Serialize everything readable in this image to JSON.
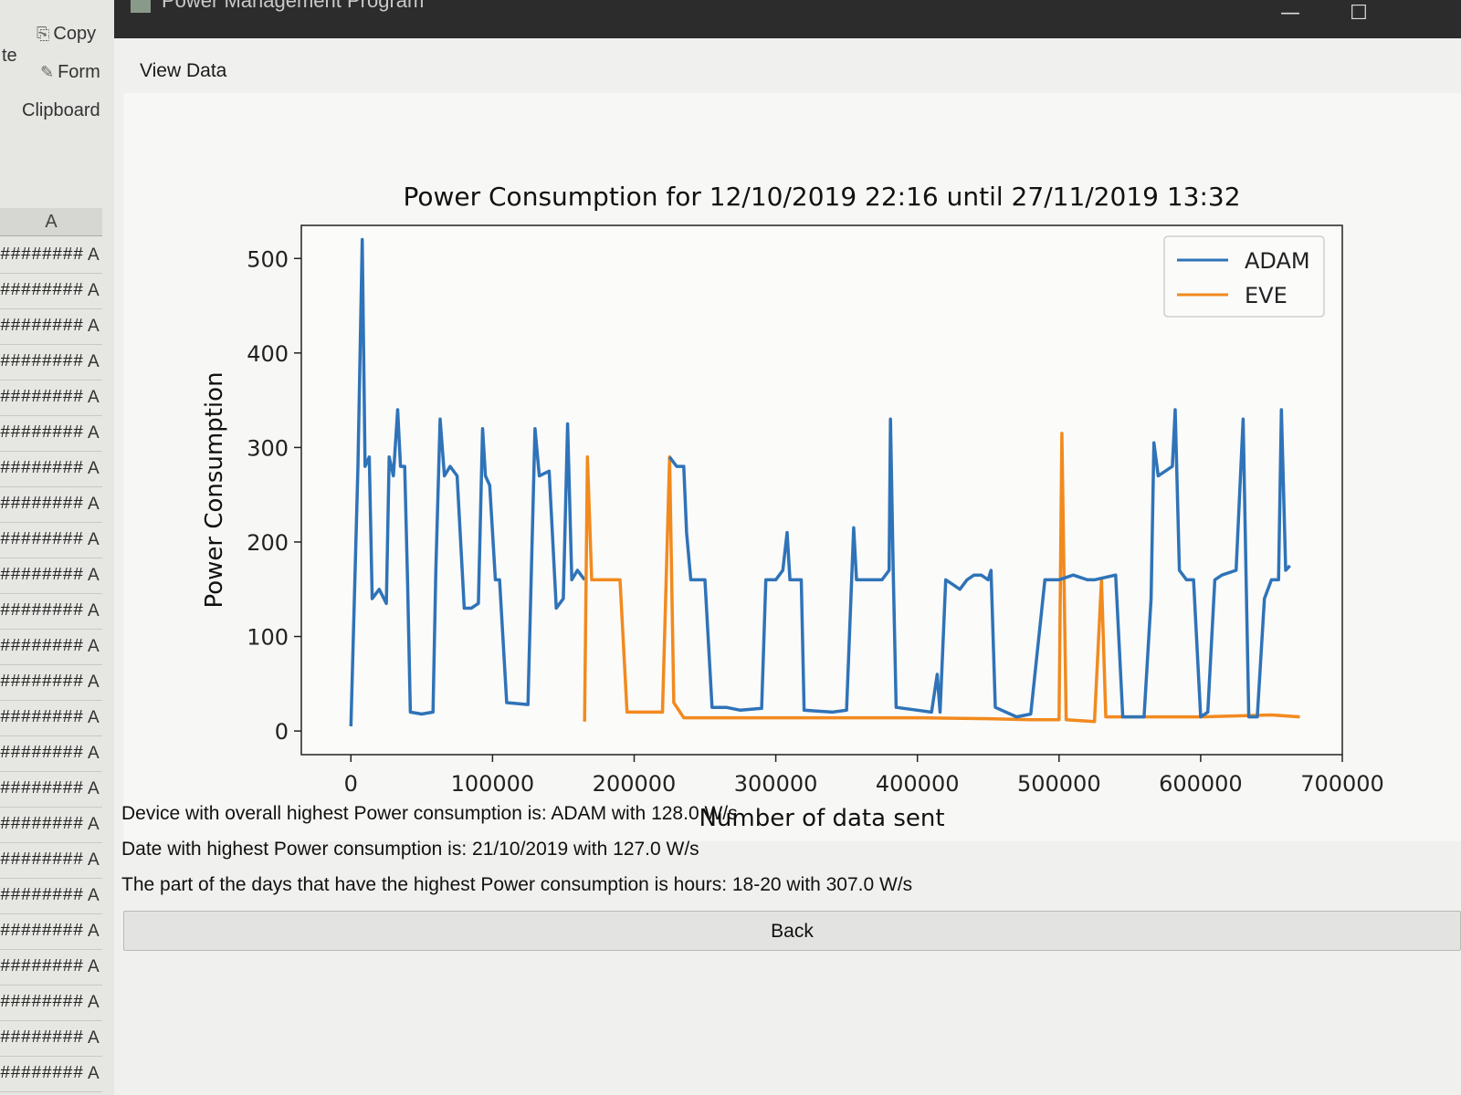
{
  "excel": {
    "ribbon": {
      "copy_label": "Copy",
      "format_label": "Form",
      "paste_label": "te",
      "group_label": "Clipboard"
    },
    "column_header": "A",
    "row_text": "########",
    "row_b": "A",
    "row_count": 24
  },
  "window": {
    "title": "Power Management Program",
    "minimize_glyph": "—",
    "maximize_glyph": "☐"
  },
  "menu": {
    "view_data": "View Data"
  },
  "chart_data": {
    "type": "line",
    "title": "Power Consumption for 12/10/2019 22:16 until 27/11/2019 13:32",
    "xlabel": "Number of data sent",
    "ylabel": "Power Consumption",
    "xlim": [
      -35000,
      700000
    ],
    "ylim": [
      -25,
      535
    ],
    "xticks": [
      0,
      100000,
      200000,
      300000,
      400000,
      500000,
      600000,
      700000
    ],
    "yticks": [
      0,
      100,
      200,
      300,
      400,
      500
    ],
    "legend_position": "top-right",
    "series": [
      {
        "name": "ADAM",
        "color": "#2f73b8",
        "points": [
          [
            0,
            5
          ],
          [
            5000,
            280
          ],
          [
            8000,
            520
          ],
          [
            10000,
            280
          ],
          [
            13000,
            290
          ],
          [
            15000,
            140
          ],
          [
            20000,
            150
          ],
          [
            25000,
            135
          ],
          [
            27000,
            290
          ],
          [
            30000,
            270
          ],
          [
            33000,
            340
          ],
          [
            35000,
            280
          ],
          [
            38000,
            280
          ],
          [
            40000,
            160
          ],
          [
            42000,
            20
          ],
          [
            50000,
            18
          ],
          [
            58000,
            20
          ],
          [
            60000,
            170
          ],
          [
            63000,
            330
          ],
          [
            66000,
            270
          ],
          [
            70000,
            280
          ],
          [
            75000,
            270
          ],
          [
            80000,
            130
          ],
          [
            85000,
            130
          ],
          [
            90000,
            135
          ],
          [
            93000,
            320
          ],
          [
            95000,
            270
          ],
          [
            98000,
            260
          ],
          [
            102000,
            160
          ],
          [
            105000,
            160
          ],
          [
            110000,
            30
          ],
          [
            125000,
            28
          ],
          [
            130000,
            320
          ],
          [
            133000,
            270
          ],
          [
            140000,
            275
          ],
          [
            145000,
            130
          ],
          [
            150000,
            140
          ],
          [
            153000,
            325
          ],
          [
            156000,
            160
          ],
          [
            160000,
            170
          ],
          [
            165000,
            160
          ]
        ]
      },
      {
        "name": "EVE",
        "color": "#f28a1e",
        "points": [
          [
            165000,
            10
          ],
          [
            167000,
            290
          ],
          [
            170000,
            160
          ],
          [
            180000,
            160
          ],
          [
            190000,
            160
          ],
          [
            195000,
            20
          ],
          [
            210000,
            20
          ],
          [
            220000,
            20
          ],
          [
            225000,
            290
          ],
          [
            228000,
            30
          ],
          [
            235000,
            14
          ],
          [
            400000,
            14
          ],
          [
            450000,
            13
          ],
          [
            480000,
            12
          ],
          [
            500000,
            12
          ],
          [
            502000,
            315
          ],
          [
            505000,
            12
          ],
          [
            525000,
            10
          ],
          [
            530000,
            160
          ],
          [
            533000,
            15
          ],
          [
            600000,
            15
          ],
          [
            650000,
            17
          ],
          [
            670000,
            15
          ]
        ]
      },
      {
        "name": "ADAM",
        "color": "#2f73b8",
        "points": [
          [
            225000,
            290
          ],
          [
            230000,
            280
          ],
          [
            235000,
            280
          ],
          [
            237000,
            210
          ],
          [
            240000,
            160
          ],
          [
            250000,
            160
          ],
          [
            255000,
            25
          ],
          [
            265000,
            25
          ],
          [
            275000,
            22
          ],
          [
            290000,
            24
          ],
          [
            293000,
            160
          ],
          [
            300000,
            160
          ],
          [
            305000,
            170
          ],
          [
            308000,
            210
          ],
          [
            310000,
            160
          ],
          [
            318000,
            160
          ],
          [
            320000,
            22
          ],
          [
            340000,
            20
          ],
          [
            350000,
            22
          ],
          [
            355000,
            215
          ],
          [
            357000,
            160
          ],
          [
            365000,
            160
          ],
          [
            375000,
            160
          ],
          [
            380000,
            170
          ],
          [
            381000,
            330
          ],
          [
            383000,
            165
          ],
          [
            385000,
            25
          ],
          [
            400000,
            22
          ],
          [
            410000,
            20
          ],
          [
            414000,
            60
          ],
          [
            416000,
            20
          ],
          [
            420000,
            160
          ],
          [
            425000,
            155
          ],
          [
            430000,
            150
          ],
          [
            435000,
            160
          ],
          [
            440000,
            165
          ],
          [
            445000,
            165
          ],
          [
            450000,
            160
          ],
          [
            452000,
            170
          ],
          [
            455000,
            25
          ],
          [
            470000,
            15
          ],
          [
            480000,
            18
          ],
          [
            490000,
            160
          ],
          [
            500000,
            160
          ],
          [
            510000,
            165
          ],
          [
            520000,
            160
          ],
          [
            525000,
            160
          ],
          [
            540000,
            165
          ],
          [
            545000,
            15
          ],
          [
            560000,
            15
          ],
          [
            565000,
            140
          ],
          [
            567000,
            305
          ],
          [
            570000,
            270
          ],
          [
            580000,
            280
          ],
          [
            582000,
            340
          ],
          [
            585000,
            170
          ],
          [
            590000,
            160
          ],
          [
            595000,
            160
          ],
          [
            600000,
            15
          ],
          [
            605000,
            20
          ],
          [
            610000,
            160
          ],
          [
            615000,
            165
          ],
          [
            625000,
            170
          ],
          [
            630000,
            330
          ],
          [
            632000,
            170
          ],
          [
            634000,
            15
          ],
          [
            640000,
            15
          ],
          [
            645000,
            140
          ],
          [
            650000,
            160
          ],
          [
            655000,
            160
          ],
          [
            657000,
            340
          ],
          [
            660000,
            170
          ],
          [
            663000,
            175
          ]
        ]
      }
    ]
  },
  "info": {
    "line1": "Device with overall highest Power consumption is: ADAM with 128.0 W/s",
    "line2": "Date with highest Power consumption is: 21/10/2019 with 127.0 W/s",
    "line3": "The part of the days that have the highest Power consumption is hours: 18-20 with 307.0 W/s"
  },
  "back_label": "Back"
}
